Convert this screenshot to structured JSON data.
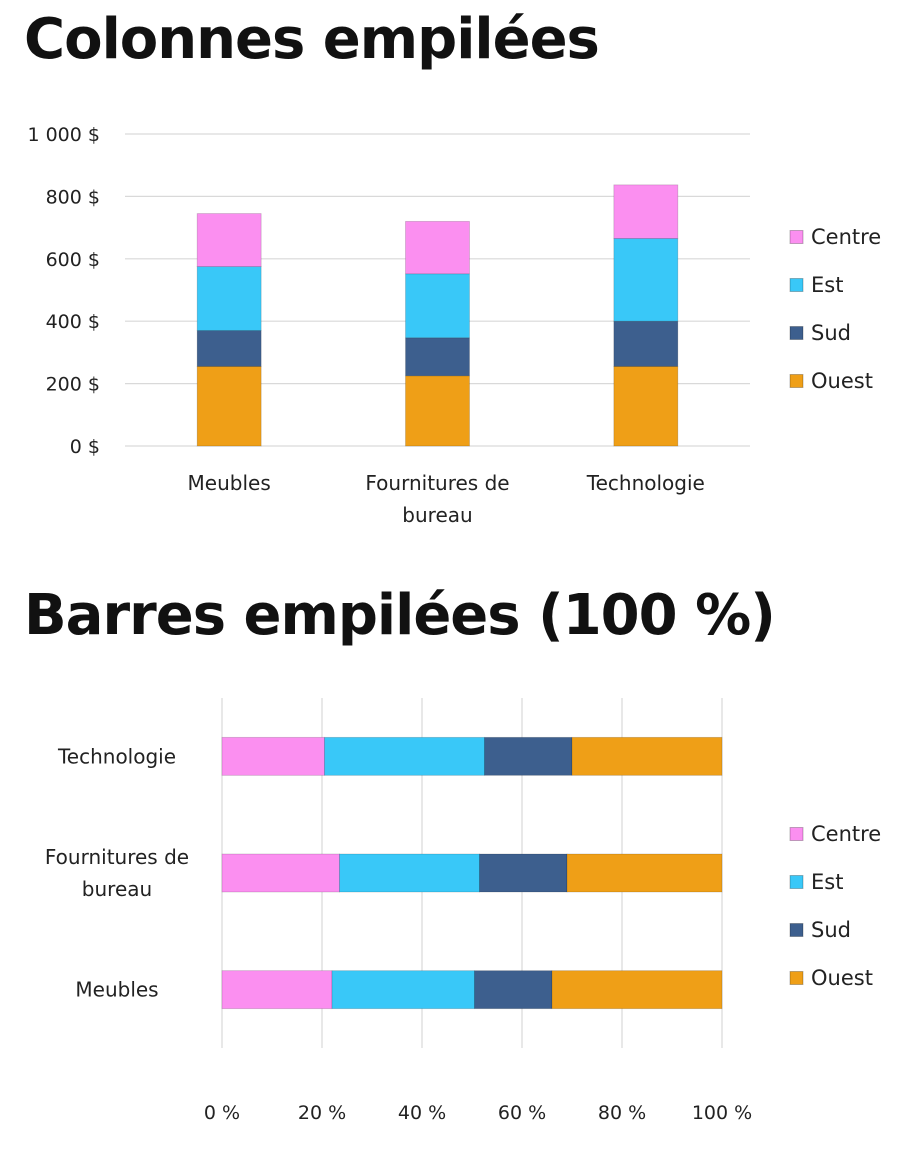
{
  "colors": {
    "Centre": "#fb8ff0",
    "Est": "#39c8f8",
    "Sud": "#3d5f8e",
    "Ouest": "#ef9f17",
    "grid": "#d9d9d9"
  },
  "chart_data": [
    {
      "type": "bar",
      "orientation": "vertical",
      "stacked": true,
      "title": "Colonnes empilées",
      "categories": [
        [
          "Meubles"
        ],
        [
          "Fournitures de",
          "bureau"
        ],
        [
          "Technologie"
        ]
      ],
      "series": [
        {
          "name": "Ouest",
          "values": [
            255,
            225,
            255
          ]
        },
        {
          "name": "Sud",
          "values": [
            115,
            122,
            145
          ]
        },
        {
          "name": "Est",
          "values": [
            205,
            205,
            265
          ]
        },
        {
          "name": "Centre",
          "values": [
            170,
            168,
            172
          ]
        }
      ],
      "yticks": [
        "0 $",
        "200 $",
        "400 $",
        "600 $",
        "800 $",
        "1 000 $"
      ],
      "ylim": [
        0,
        1000
      ],
      "grid": true,
      "legend": "right",
      "legend_order": [
        "Centre",
        "Est",
        "Sud",
        "Ouest"
      ]
    },
    {
      "type": "bar",
      "orientation": "horizontal",
      "stacked": true,
      "percent": true,
      "title": "Barres empilées (100 %)",
      "categories": [
        [
          "Technologie"
        ],
        [
          "Fournitures de",
          "bureau"
        ],
        [
          "Meubles"
        ]
      ],
      "series": [
        {
          "name": "Centre",
          "values": [
            20.5,
            23.5,
            22
          ]
        },
        {
          "name": "Est",
          "values": [
            32,
            28,
            28.5
          ]
        },
        {
          "name": "Sud",
          "values": [
            17.5,
            17.5,
            15.5
          ]
        },
        {
          "name": "Ouest",
          "values": [
            30,
            31,
            34
          ]
        }
      ],
      "xticks": [
        "0 %",
        "20 %",
        "40 %",
        "60 %",
        "80 %",
        "100 %"
      ],
      "xlim": [
        0,
        100
      ],
      "grid": true,
      "legend": "right",
      "legend_order": [
        "Centre",
        "Est",
        "Sud",
        "Ouest"
      ]
    }
  ]
}
